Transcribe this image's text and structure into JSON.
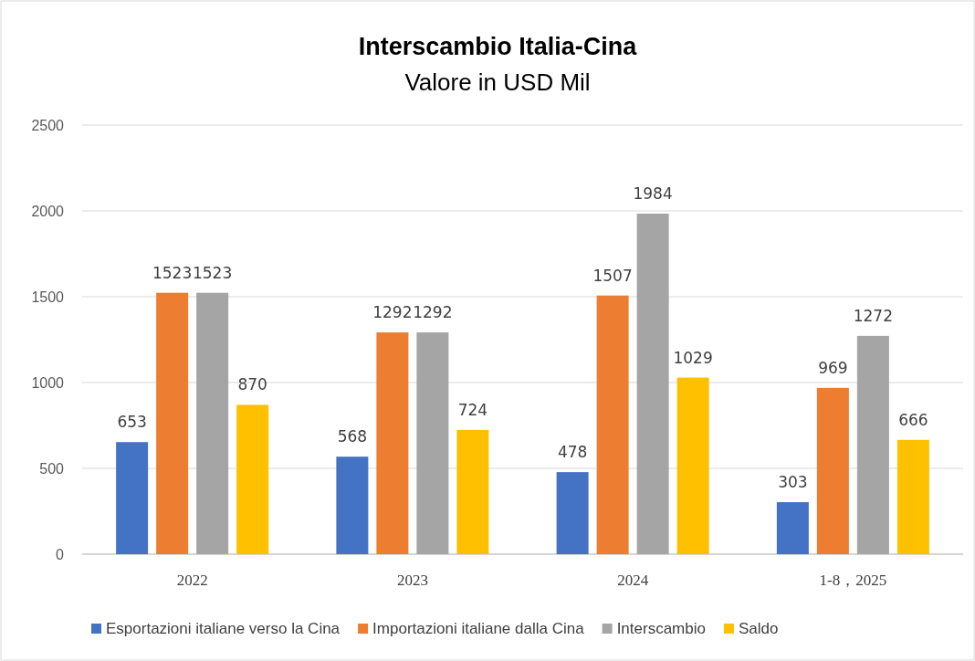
{
  "chart_data": {
    "type": "bar",
    "title": "Interscambio Italia-Cina",
    "subtitle": "Valore in USD Mil",
    "categories": [
      "2022",
      "2023",
      "2024",
      "1-8，2025"
    ],
    "series": [
      {
        "name": "Esportazioni italiane verso la Cina",
        "color": "#4472c4",
        "values": [
          653,
          568,
          478,
          303
        ]
      },
      {
        "name": "Importazioni italiane dalla Cina",
        "color": "#ed7d31",
        "values": [
          1523,
          1292,
          1507,
          969
        ]
      },
      {
        "name": "Interscambio",
        "color": "#a5a5a5",
        "values": [
          1523,
          1292,
          1984,
          1272
        ]
      },
      {
        "name": "Saldo",
        "color": "#ffc000",
        "values": [
          870,
          724,
          1029,
          666
        ]
      }
    ],
    "ylim": [
      0,
      2500
    ],
    "yticks": [
      0,
      500,
      1000,
      1500,
      2000,
      2500
    ],
    "grid": "y",
    "legend": "bottom",
    "data_labels": true
  }
}
